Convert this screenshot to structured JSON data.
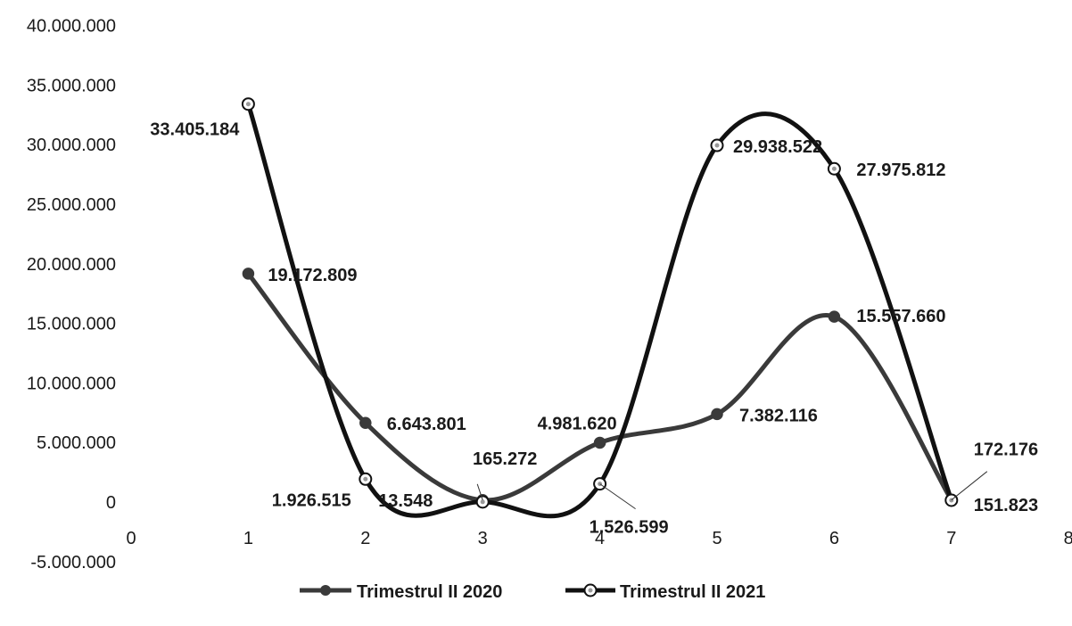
{
  "chart_data": {
    "type": "line",
    "title": "",
    "xlabel": "",
    "ylabel": "",
    "xlim": [
      0,
      8
    ],
    "ylim": [
      -5000000,
      40000000
    ],
    "x_ticks": [
      0,
      1,
      2,
      3,
      4,
      5,
      6,
      7,
      8
    ],
    "x_tick_labels": [
      "0",
      "1",
      "2",
      "3",
      "4",
      "5",
      "6",
      "7",
      "8"
    ],
    "y_ticks": [
      -5000000,
      0,
      5000000,
      10000000,
      15000000,
      20000000,
      25000000,
      30000000,
      35000000,
      40000000
    ],
    "y_tick_labels": [
      "-5.000.000",
      "0",
      "5.000.000",
      "10.000.000",
      "15.000.000",
      "20.000.000",
      "25.000.000",
      "30.000.000",
      "35.000.000",
      "40.000.000"
    ],
    "grid": false,
    "smooth": true,
    "legend_position": "bottom",
    "x": [
      1,
      2,
      3,
      4,
      5,
      6,
      7
    ],
    "series": [
      {
        "name": "Trimestrul II 2020",
        "marker": "filled-circle",
        "values": [
          19172809,
          6643801,
          165272,
          4981620,
          7382116,
          15557660,
          172176
        ],
        "labels": [
          "19.172.809",
          "6.643.801",
          "165.272",
          "4.981.620",
          "7.382.116",
          "15.557.660",
          "172.176"
        ]
      },
      {
        "name": "Trimestrul II 2021",
        "marker": "hollow-circle",
        "values": [
          33405184,
          1926515,
          13548,
          1526599,
          29938522,
          27975812,
          151823
        ],
        "labels": [
          "33.405.184",
          "1.926.515",
          "13.548",
          "1.526.599",
          "29.938.522",
          "27.975.812",
          "151.823"
        ]
      }
    ]
  },
  "colors": {
    "series_2020": "#3a3a3a",
    "series_2021": "#111111",
    "text": "#1a1a1a"
  }
}
